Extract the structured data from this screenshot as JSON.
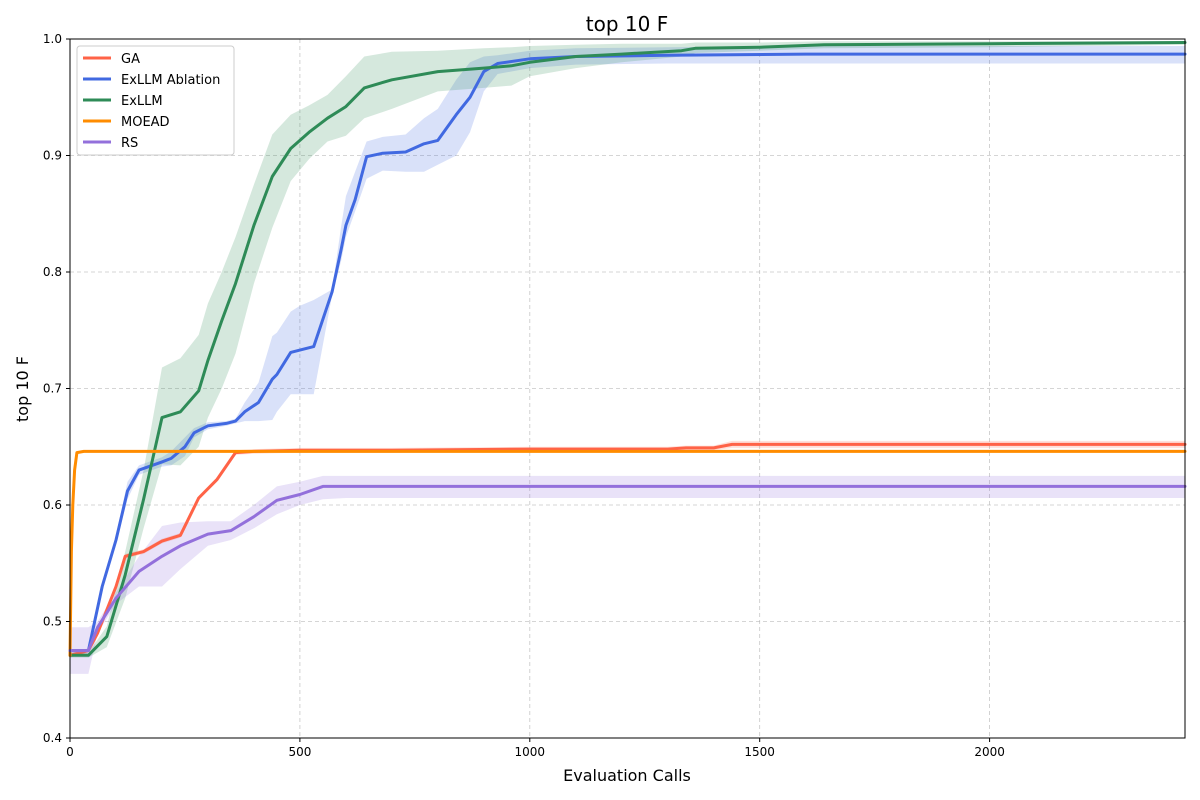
{
  "chart_data": {
    "type": "line",
    "title": "top 10 F",
    "xlabel": "Evaluation Calls",
    "ylabel": "top 10 F",
    "xlim": [
      0,
      2425
    ],
    "ylim": [
      0.4,
      1.0
    ],
    "xticks": [
      0,
      500,
      1000,
      1500,
      2000
    ],
    "yticks": [
      0.4,
      0.5,
      0.6,
      0.7,
      0.8,
      0.9,
      1.0
    ],
    "ytick_labels": [
      "0.4",
      "0.5",
      "0.6",
      "0.7",
      "0.8",
      "0.9",
      "1.0"
    ],
    "grid": true,
    "legend_position": "top-left",
    "series": [
      {
        "name": "GA",
        "color": "#ff6347",
        "x": [
          0,
          20,
          40,
          60,
          80,
          100,
          120,
          160,
          200,
          240,
          280,
          320,
          360,
          400,
          500,
          700,
          1000,
          1300,
          1340,
          1400,
          1440,
          1600,
          2000,
          2425
        ],
        "y": [
          0.471,
          0.473,
          0.475,
          0.49,
          0.51,
          0.53,
          0.556,
          0.56,
          0.569,
          0.574,
          0.606,
          0.622,
          0.645,
          0.646,
          0.647,
          0.647,
          0.648,
          0.648,
          0.649,
          0.649,
          0.652,
          0.652,
          0.652,
          0.652
        ],
        "lower": [
          0.469,
          0.471,
          0.473,
          0.488,
          0.508,
          0.528,
          0.554,
          0.558,
          0.567,
          0.572,
          0.604,
          0.62,
          0.643,
          0.644,
          0.645,
          0.645,
          0.646,
          0.646,
          0.647,
          0.647,
          0.649,
          0.649,
          0.649,
          0.649
        ],
        "upper": [
          0.473,
          0.475,
          0.477,
          0.492,
          0.512,
          0.532,
          0.558,
          0.562,
          0.571,
          0.576,
          0.608,
          0.624,
          0.647,
          0.648,
          0.649,
          0.649,
          0.65,
          0.65,
          0.651,
          0.651,
          0.655,
          0.655,
          0.655,
          0.655
        ]
      },
      {
        "name": "ExLLM Ablation",
        "color": "#4169e1",
        "x": [
          0,
          40,
          70,
          100,
          125,
          150,
          200,
          220,
          250,
          270,
          300,
          340,
          360,
          380,
          410,
          440,
          450,
          480,
          500,
          530,
          570,
          590,
          600,
          620,
          645,
          680,
          730,
          770,
          800,
          840,
          870,
          900,
          930,
          1000,
          1100,
          1300,
          1600,
          2000,
          2425
        ],
        "y": [
          0.475,
          0.475,
          0.53,
          0.57,
          0.612,
          0.63,
          0.637,
          0.64,
          0.65,
          0.662,
          0.668,
          0.67,
          0.672,
          0.68,
          0.688,
          0.708,
          0.712,
          0.731,
          0.733,
          0.736,
          0.783,
          0.82,
          0.84,
          0.862,
          0.899,
          0.902,
          0.903,
          0.91,
          0.913,
          0.935,
          0.95,
          0.972,
          0.979,
          0.983,
          0.985,
          0.986,
          0.987,
          0.987,
          0.987
        ],
        "lower": [
          0.475,
          0.475,
          0.528,
          0.566,
          0.605,
          0.626,
          0.633,
          0.634,
          0.642,
          0.658,
          0.665,
          0.668,
          0.67,
          0.672,
          0.672,
          0.673,
          0.68,
          0.695,
          0.695,
          0.695,
          0.78,
          0.81,
          0.83,
          0.852,
          0.88,
          0.887,
          0.886,
          0.886,
          0.892,
          0.9,
          0.92,
          0.955,
          0.97,
          0.975,
          0.978,
          0.979,
          0.979,
          0.979,
          0.979
        ],
        "upper": [
          0.475,
          0.475,
          0.532,
          0.574,
          0.62,
          0.634,
          0.641,
          0.646,
          0.658,
          0.666,
          0.671,
          0.672,
          0.674,
          0.688,
          0.705,
          0.745,
          0.748,
          0.766,
          0.771,
          0.776,
          0.785,
          0.84,
          0.865,
          0.886,
          0.912,
          0.916,
          0.918,
          0.932,
          0.94,
          0.965,
          0.98,
          0.985,
          0.986,
          0.99,
          0.992,
          0.993,
          0.994,
          0.994,
          0.994
        ]
      },
      {
        "name": "ExLLM",
        "color": "#2e8b57",
        "x": [
          0,
          40,
          80,
          120,
          160,
          200,
          240,
          280,
          300,
          330,
          360,
          400,
          440,
          480,
          520,
          560,
          600,
          640,
          700,
          800,
          900,
          960,
          1000,
          1100,
          1200,
          1330,
          1360,
          1500,
          1640,
          2000,
          2425
        ],
        "y": [
          0.471,
          0.471,
          0.487,
          0.54,
          0.605,
          0.675,
          0.68,
          0.698,
          0.724,
          0.758,
          0.79,
          0.84,
          0.882,
          0.906,
          0.92,
          0.932,
          0.942,
          0.958,
          0.965,
          0.972,
          0.975,
          0.977,
          0.98,
          0.985,
          0.987,
          0.99,
          0.992,
          0.993,
          0.995,
          0.996,
          0.997
        ],
        "lower": [
          0.469,
          0.469,
          0.478,
          0.52,
          0.58,
          0.635,
          0.634,
          0.65,
          0.675,
          0.7,
          0.73,
          0.79,
          0.838,
          0.878,
          0.897,
          0.912,
          0.917,
          0.932,
          0.94,
          0.955,
          0.958,
          0.96,
          0.968,
          0.975,
          0.98,
          0.985,
          0.988,
          0.99,
          0.992,
          0.993,
          0.995
        ],
        "upper": [
          0.473,
          0.473,
          0.496,
          0.56,
          0.63,
          0.718,
          0.726,
          0.746,
          0.773,
          0.8,
          0.83,
          0.875,
          0.918,
          0.935,
          0.943,
          0.952,
          0.968,
          0.985,
          0.989,
          0.99,
          0.992,
          0.993,
          0.994,
          0.995,
          0.996,
          0.996,
          0.997,
          0.997,
          0.998,
          0.998,
          0.998
        ]
      },
      {
        "name": "MOEAD",
        "color": "#ff8c00",
        "x": [
          0,
          3,
          6,
          10,
          15,
          30,
          60,
          100,
          500,
          1000,
          1500,
          2000,
          2425
        ],
        "y": [
          0.471,
          0.56,
          0.6,
          0.63,
          0.645,
          0.646,
          0.646,
          0.646,
          0.646,
          0.646,
          0.646,
          0.646,
          0.646
        ],
        "lower": [
          0.469,
          0.558,
          0.598,
          0.628,
          0.644,
          0.645,
          0.645,
          0.645,
          0.645,
          0.645,
          0.645,
          0.645,
          0.645
        ],
        "upper": [
          0.473,
          0.562,
          0.602,
          0.632,
          0.646,
          0.647,
          0.647,
          0.647,
          0.647,
          0.647,
          0.647,
          0.647,
          0.647
        ]
      },
      {
        "name": "RS",
        "color": "#9370db",
        "x": [
          0,
          40,
          60,
          100,
          150,
          200,
          240,
          300,
          350,
          400,
          450,
          500,
          550,
          600,
          1000,
          1500,
          2000,
          2425
        ],
        "y": [
          0.475,
          0.475,
          0.495,
          0.52,
          0.543,
          0.556,
          0.565,
          0.575,
          0.578,
          0.59,
          0.604,
          0.609,
          0.616,
          0.616,
          0.616,
          0.616,
          0.616,
          0.616
        ],
        "lower": [
          0.455,
          0.455,
          0.49,
          0.515,
          0.53,
          0.53,
          0.545,
          0.565,
          0.57,
          0.58,
          0.592,
          0.6,
          0.605,
          0.606,
          0.606,
          0.606,
          0.606,
          0.606
        ],
        "upper": [
          0.495,
          0.495,
          0.5,
          0.525,
          0.556,
          0.582,
          0.585,
          0.586,
          0.586,
          0.6,
          0.616,
          0.62,
          0.625,
          0.625,
          0.625,
          0.625,
          0.625,
          0.625
        ]
      }
    ]
  }
}
